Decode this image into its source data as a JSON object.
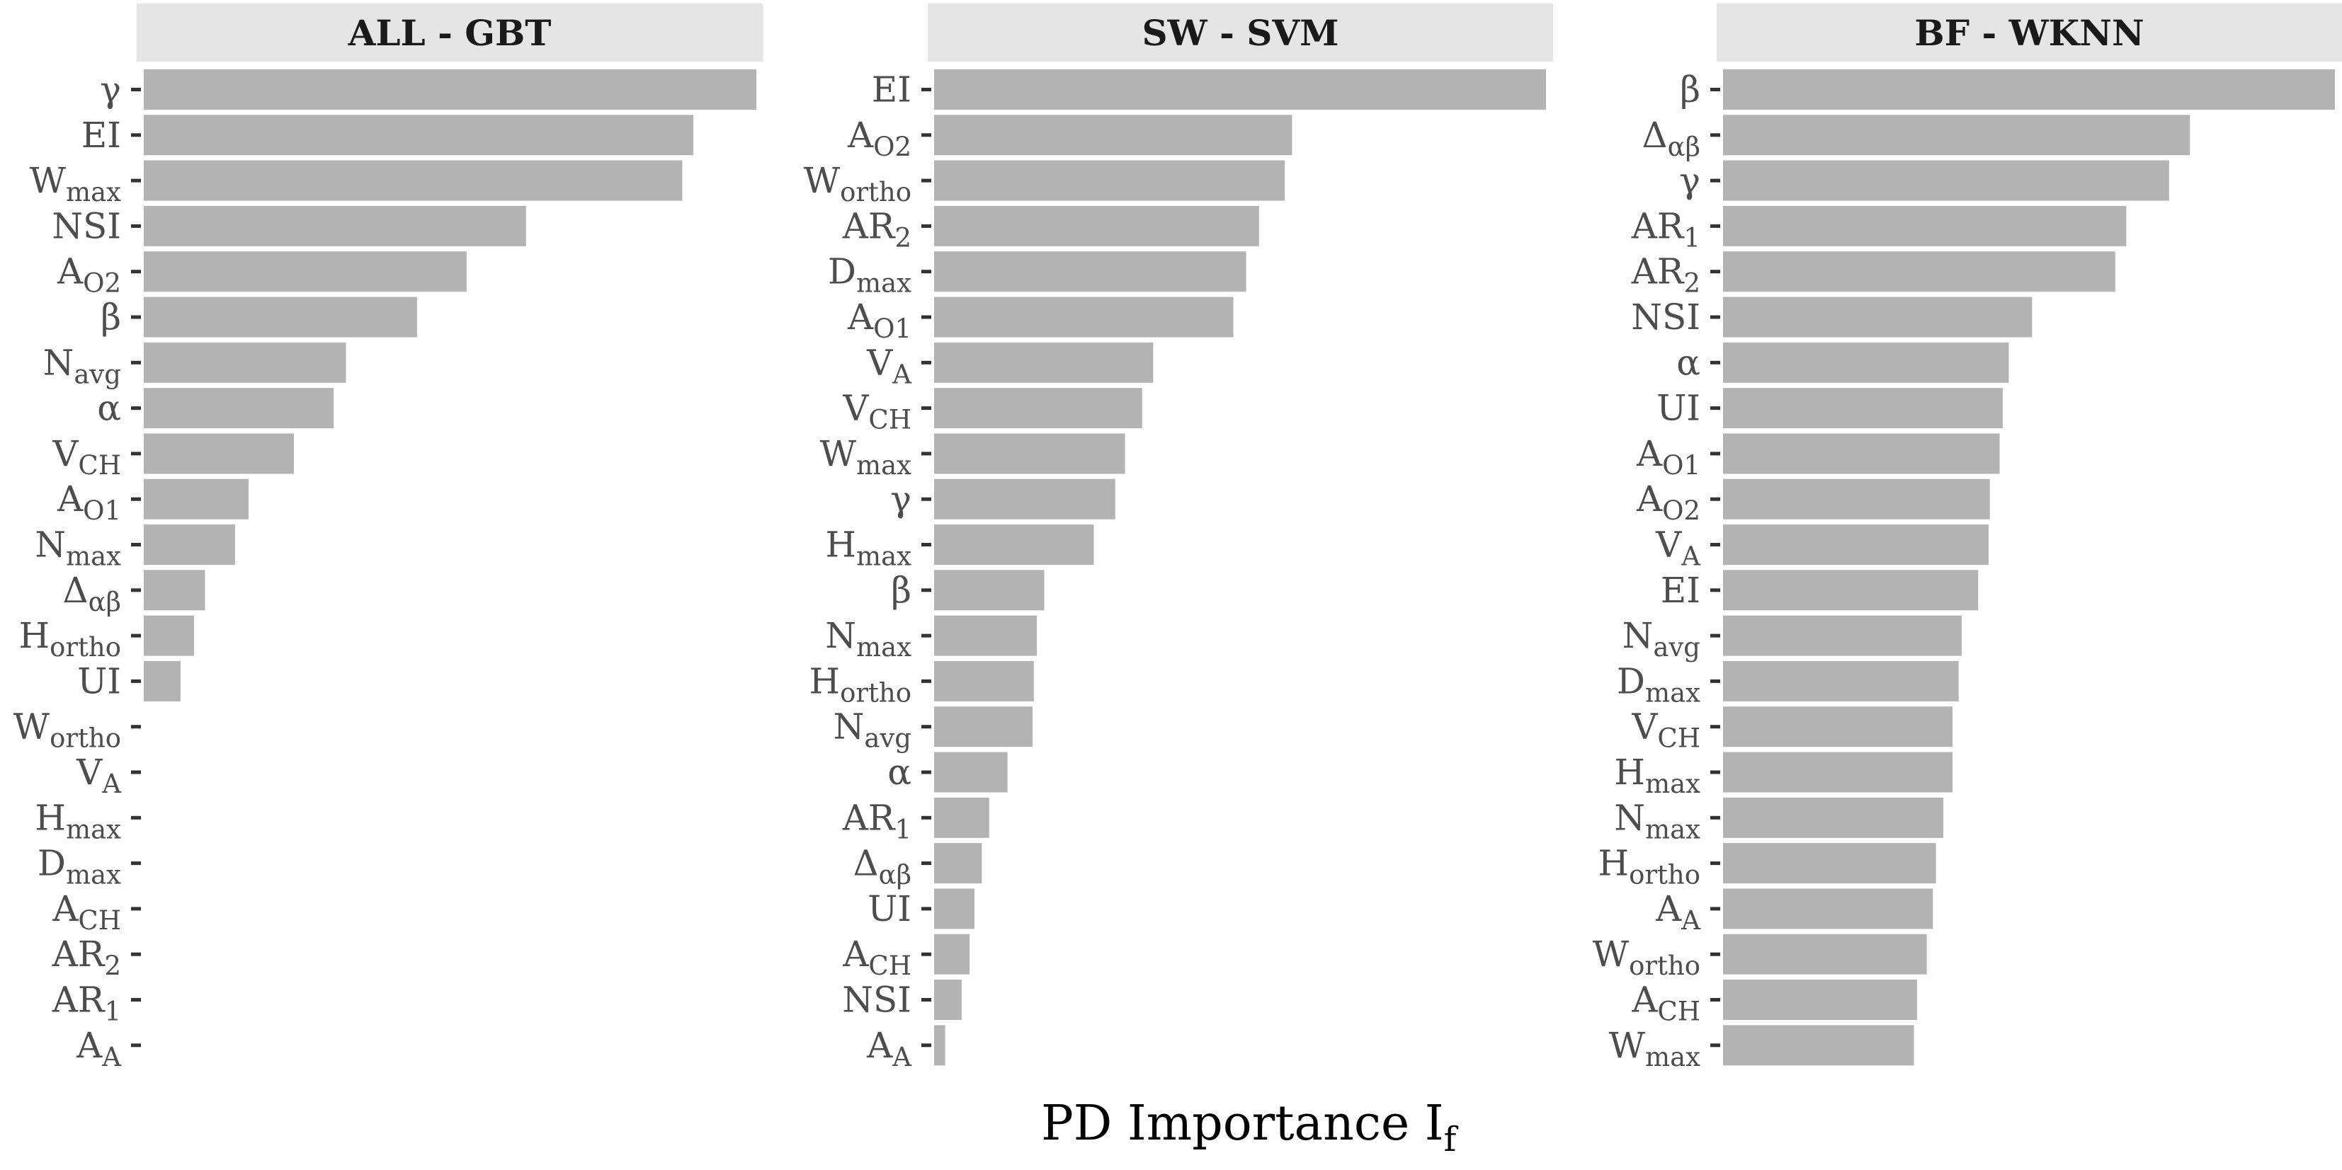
{
  "chart_data": [
    {
      "type": "bar",
      "orientation": "horizontal",
      "panel_title": "ALL - GBT",
      "categories": [
        {
          "base": "γ",
          "sub": ""
        },
        {
          "base": "EI",
          "sub": ""
        },
        {
          "base": "W",
          "sub": "max"
        },
        {
          "base": "NSI",
          "sub": ""
        },
        {
          "base": "A",
          "sub": "O2"
        },
        {
          "base": "β",
          "sub": ""
        },
        {
          "base": "N",
          "sub": "avg"
        },
        {
          "base": "α",
          "sub": ""
        },
        {
          "base": "V",
          "sub": "CH"
        },
        {
          "base": "A",
          "sub": "O1"
        },
        {
          "base": "N",
          "sub": "max"
        },
        {
          "base": "Δ",
          "sub": "αβ"
        },
        {
          "base": "H",
          "sub": "ortho"
        },
        {
          "base": "UI",
          "sub": ""
        },
        {
          "base": "W",
          "sub": "ortho"
        },
        {
          "base": "V",
          "sub": "A"
        },
        {
          "base": "H",
          "sub": "max"
        },
        {
          "base": "D",
          "sub": "max"
        },
        {
          "base": "A",
          "sub": "CH"
        },
        {
          "base": "AR",
          "sub": "2"
        },
        {
          "base": "AR",
          "sub": "1"
        },
        {
          "base": "A",
          "sub": "A"
        }
      ],
      "values": [
        1.0,
        0.897,
        0.879,
        0.624,
        0.527,
        0.446,
        0.33,
        0.31,
        0.245,
        0.171,
        0.149,
        0.1,
        0.082,
        0.06,
        0,
        0,
        0,
        0,
        0,
        0,
        0,
        0
      ],
      "xlim": [
        0,
        1.0
      ],
      "color": "#b3b3b3"
    },
    {
      "type": "bar",
      "orientation": "horizontal",
      "panel_title": "SW - SVM",
      "categories": [
        {
          "base": "EI",
          "sub": ""
        },
        {
          "base": "A",
          "sub": "O2"
        },
        {
          "base": "W",
          "sub": "ortho"
        },
        {
          "base": "AR",
          "sub": "2"
        },
        {
          "base": "D",
          "sub": "max"
        },
        {
          "base": "A",
          "sub": "O1"
        },
        {
          "base": "V",
          "sub": "A"
        },
        {
          "base": "V",
          "sub": "CH"
        },
        {
          "base": "W",
          "sub": "max"
        },
        {
          "base": "γ",
          "sub": ""
        },
        {
          "base": "H",
          "sub": "max"
        },
        {
          "base": "β",
          "sub": ""
        },
        {
          "base": "N",
          "sub": "max"
        },
        {
          "base": "H",
          "sub": "ortho"
        },
        {
          "base": "N",
          "sub": "avg"
        },
        {
          "base": "α",
          "sub": ""
        },
        {
          "base": "AR",
          "sub": "1"
        },
        {
          "base": "Δ",
          "sub": "αβ"
        },
        {
          "base": "UI",
          "sub": ""
        },
        {
          "base": "A",
          "sub": "CH"
        },
        {
          "base": "NSI",
          "sub": ""
        },
        {
          "base": "A",
          "sub": "A"
        }
      ],
      "values": [
        1.0,
        0.585,
        0.573,
        0.531,
        0.51,
        0.489,
        0.358,
        0.34,
        0.312,
        0.296,
        0.261,
        0.18,
        0.168,
        0.163,
        0.161,
        0.12,
        0.09,
        0.078,
        0.066,
        0.058,
        0.045,
        0.018
      ],
      "xlim": [
        0,
        1.0
      ],
      "color": "#b3b3b3"
    },
    {
      "type": "bar",
      "orientation": "horizontal",
      "panel_title": "BF - WKNN",
      "categories": [
        {
          "base": "β",
          "sub": ""
        },
        {
          "base": "Δ",
          "sub": "αβ"
        },
        {
          "base": "γ",
          "sub": ""
        },
        {
          "base": "AR",
          "sub": "1"
        },
        {
          "base": "AR",
          "sub": "2"
        },
        {
          "base": "NSI",
          "sub": ""
        },
        {
          "base": "α",
          "sub": ""
        },
        {
          "base": "UI",
          "sub": ""
        },
        {
          "base": "A",
          "sub": "O1"
        },
        {
          "base": "A",
          "sub": "O2"
        },
        {
          "base": "V",
          "sub": "A"
        },
        {
          "base": "EI",
          "sub": ""
        },
        {
          "base": "N",
          "sub": "avg"
        },
        {
          "base": "D",
          "sub": "max"
        },
        {
          "base": "V",
          "sub": "CH"
        },
        {
          "base": "H",
          "sub": "max"
        },
        {
          "base": "N",
          "sub": "max"
        },
        {
          "base": "H",
          "sub": "ortho"
        },
        {
          "base": "A",
          "sub": "A"
        },
        {
          "base": "W",
          "sub": "ortho"
        },
        {
          "base": "A",
          "sub": "CH"
        },
        {
          "base": "W",
          "sub": "max"
        }
      ],
      "values": [
        1.0,
        0.763,
        0.729,
        0.659,
        0.641,
        0.505,
        0.467,
        0.457,
        0.452,
        0.436,
        0.434,
        0.417,
        0.39,
        0.385,
        0.375,
        0.375,
        0.36,
        0.348,
        0.343,
        0.333,
        0.317,
        0.312
      ],
      "xlim": [
        0,
        1.0
      ],
      "color": "#b3b3b3"
    }
  ],
  "xlabel": {
    "base": "PD Importance I",
    "sub": "f"
  }
}
